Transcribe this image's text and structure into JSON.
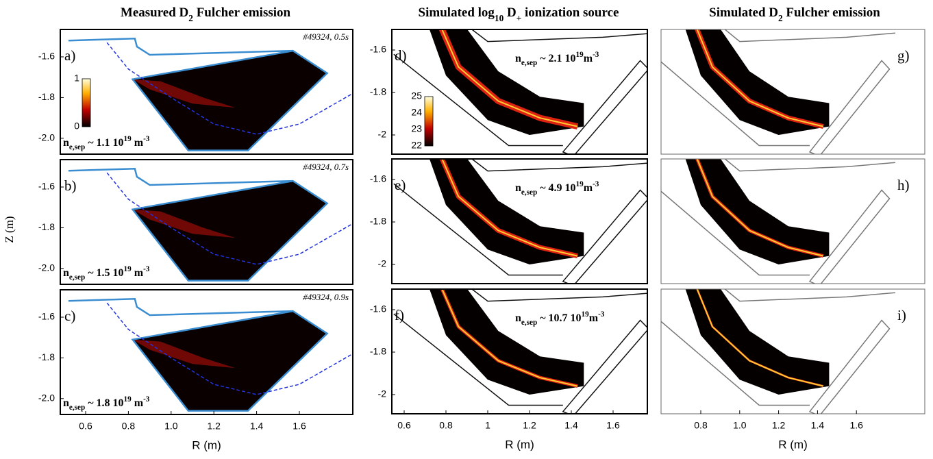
{
  "columns": [
    {
      "title": [
        "Measured D",
        "2",
        " Fulcher emission"
      ],
      "yticks": [
        "-1.6",
        "-1.8",
        "-2.0"
      ],
      "xticks": [
        "0.6",
        "0.8",
        "1.0",
        "1.2",
        "1.4",
        "1.6"
      ],
      "colorbar": [
        "0",
        "1"
      ],
      "panels": [
        {
          "label": "a)",
          "shot": "#49324, 0.5s",
          "annotation": [
            "n",
            "e,sep",
            " ~ 1.1 10",
            "19",
            " m",
            "-3"
          ]
        },
        {
          "label": "b)",
          "shot": "#49324, 0.7s",
          "annotation": [
            "n",
            "e,sep",
            " ~ 1.5 10",
            "19",
            " m",
            "-3"
          ]
        },
        {
          "label": "c)",
          "shot": "#49324, 0.9s",
          "annotation": [
            "n",
            "e,sep",
            " ~ 1.8 10",
            "19",
            " m",
            "-3"
          ]
        }
      ]
    },
    {
      "title": [
        "Simulated log",
        "10",
        " D",
        "+",
        " ionization source"
      ],
      "yticks": [
        "-1.6",
        "-1.8",
        "-2"
      ],
      "xticks": [
        "0.6",
        "0.8",
        "1",
        "1.2",
        "1.4",
        "1.6"
      ],
      "colorbar": [
        "25",
        "24",
        "23",
        "22"
      ],
      "panels": [
        {
          "label": "d)",
          "annotation": [
            "n",
            "e,sep",
            " ~ 2.1 10",
            "19",
            "m",
            "-3"
          ]
        },
        {
          "label": "e)",
          "annotation": [
            "n",
            "e,sep",
            " ~ 4.9 10",
            "19",
            "m",
            "-3"
          ]
        },
        {
          "label": "f)",
          "annotation": [
            "n",
            "e,sep",
            " ~ 10.7 10",
            "19",
            "m",
            "-3"
          ]
        }
      ]
    },
    {
      "title": [
        "Simulated D",
        "2",
        " Fulcher emission"
      ],
      "xticks": [
        "0.8",
        "1.0",
        "1.2",
        "1.4",
        "1.6"
      ],
      "panels": [
        {
          "label": "g)"
        },
        {
          "label": "h)"
        },
        {
          "label": "i)"
        }
      ]
    }
  ],
  "xlabel": "R (m)",
  "ylabel": "Z (m)"
}
